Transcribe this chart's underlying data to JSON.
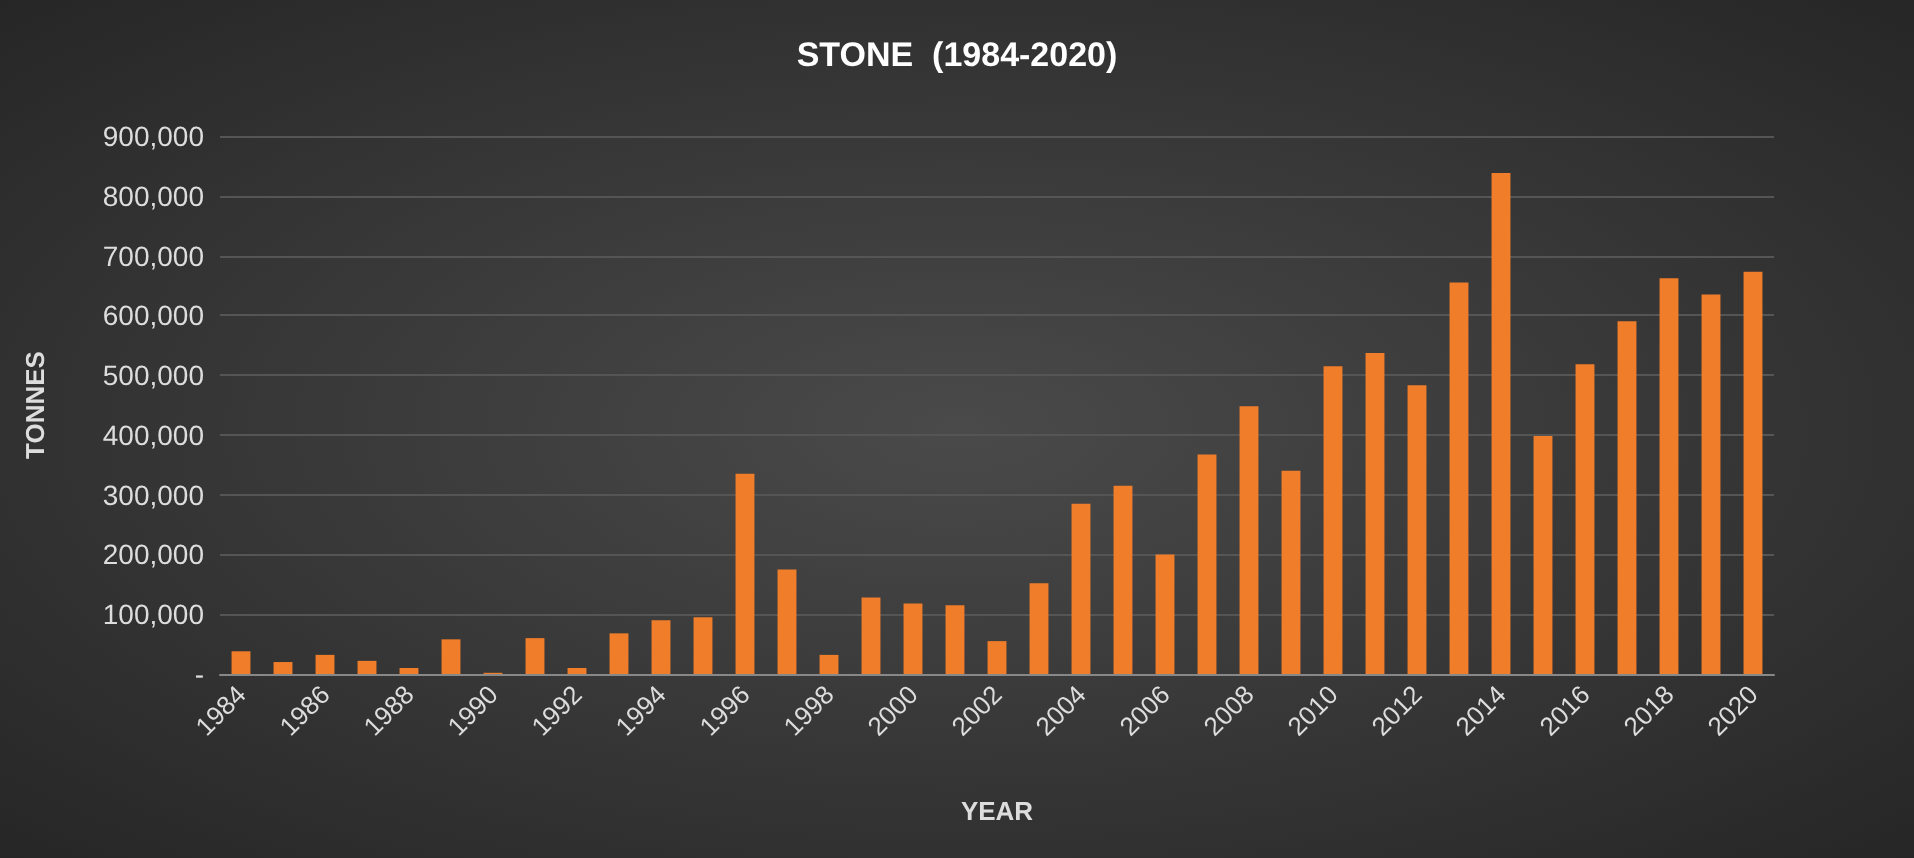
{
  "chart_data": {
    "type": "bar",
    "title": "STONE  (1984-2020)",
    "xlabel": "YEAR",
    "ylabel": "TONNES",
    "categories": [
      "1984",
      null,
      "1986",
      null,
      "1988",
      null,
      "1990",
      null,
      "1992",
      null,
      "1994",
      null,
      "1996",
      null,
      "1998",
      null,
      "2000",
      null,
      "2002",
      null,
      "2004",
      null,
      "2006",
      null,
      "2008",
      null,
      "2010",
      null,
      "2012",
      null,
      "2014",
      null,
      "2016",
      null,
      "2018",
      null,
      "2020"
    ],
    "values": [
      38000,
      20000,
      32000,
      22000,
      10000,
      58000,
      2000,
      60000,
      10000,
      68000,
      90000,
      95000,
      335000,
      175000,
      32000,
      128000,
      118000,
      115000,
      55000,
      152000,
      285000,
      315000,
      200000,
      367000,
      448000,
      340000,
      515000,
      537000,
      483000,
      655000,
      838000,
      398000,
      518000,
      590000,
      662000,
      635000,
      673000
    ],
    "color": "#f07d2a",
    "ylim": [
      0,
      900000
    ],
    "yticks": [
      {
        "value": 0,
        "label": "-"
      },
      {
        "value": 100000,
        "label": "100,000"
      },
      {
        "value": 200000,
        "label": "200,000"
      },
      {
        "value": 300000,
        "label": "300,000"
      },
      {
        "value": 400000,
        "label": "400,000"
      },
      {
        "value": 500000,
        "label": "500,000"
      },
      {
        "value": 600000,
        "label": "600,000"
      },
      {
        "value": 700000,
        "label": "700,000"
      },
      {
        "value": 800000,
        "label": "800,000"
      },
      {
        "value": 900000,
        "label": "900,000"
      }
    ],
    "grid": "y"
  }
}
